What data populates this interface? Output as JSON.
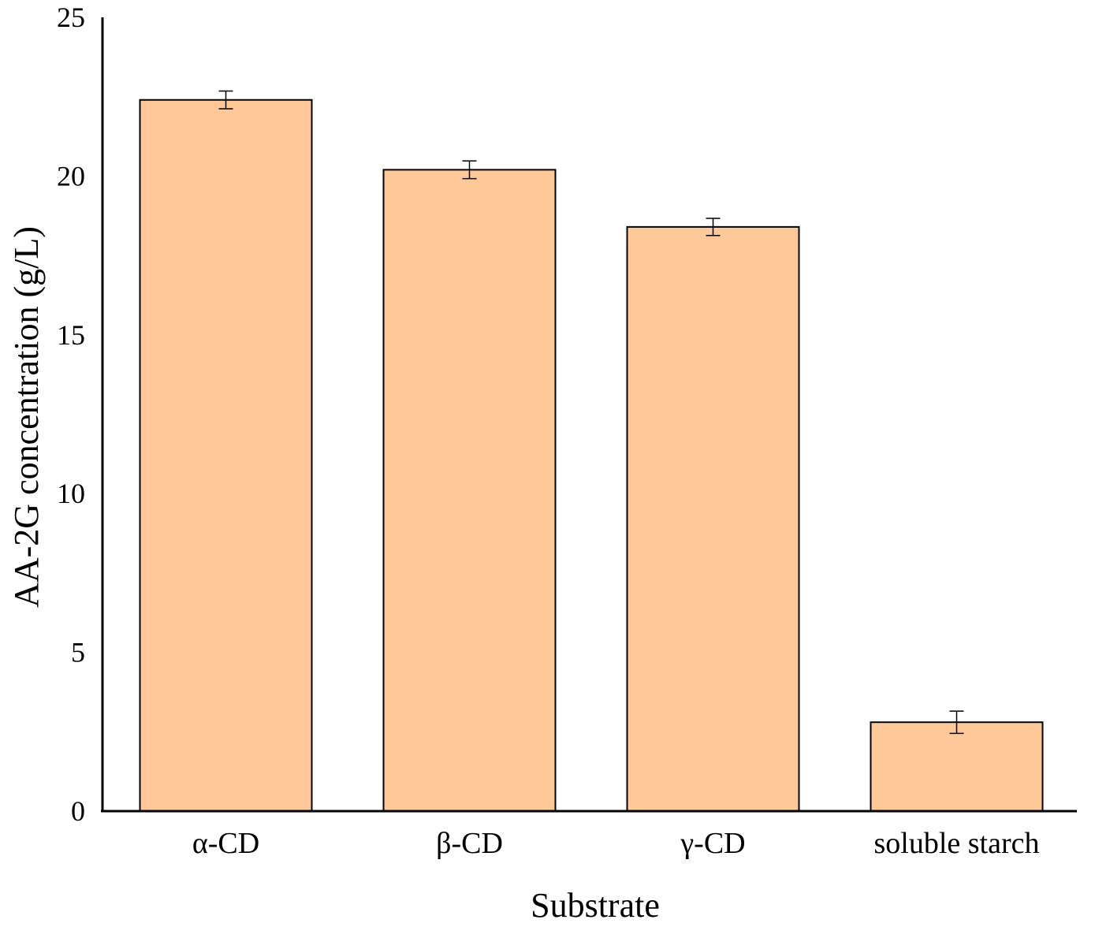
{
  "chart_data": {
    "type": "bar",
    "title": "",
    "xlabel": "Substrate",
    "ylabel": "AA-2G concentration (g/L)",
    "categories": [
      "α-CD",
      "β-CD",
      "γ-CD",
      "soluble starch"
    ],
    "values": [
      22.4,
      20.2,
      18.4,
      2.8
    ],
    "errors": [
      0.28,
      0.28,
      0.27,
      0.35
    ],
    "ylim": [
      0,
      25
    ],
    "yticks": [
      "0",
      "5",
      "10",
      "15",
      "20",
      "25"
    ],
    "grid": false,
    "legend": "none",
    "bar_color": "#FFC898",
    "bar_edge_color": "#000000"
  }
}
